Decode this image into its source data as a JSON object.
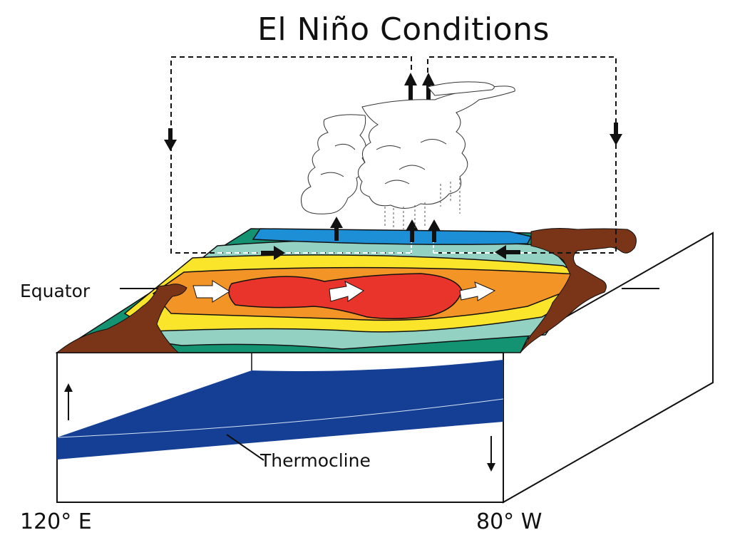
{
  "title": "El Niño Conditions",
  "labels": {
    "equator": "Equator",
    "thermocline": "Thermocline",
    "longitude_west": "120° E",
    "longitude_east": "80° W"
  },
  "colors": {
    "land": "#7a3418",
    "warmest_sst": "#e8342a",
    "warm_sst": "#f39427",
    "mild_sst": "#fbe52b",
    "cool_sst": "#93d2c2",
    "cold_sst": "#149373",
    "atmosphere_cap": "#1d8fd6",
    "thermocline_layer": "#143f95"
  }
}
